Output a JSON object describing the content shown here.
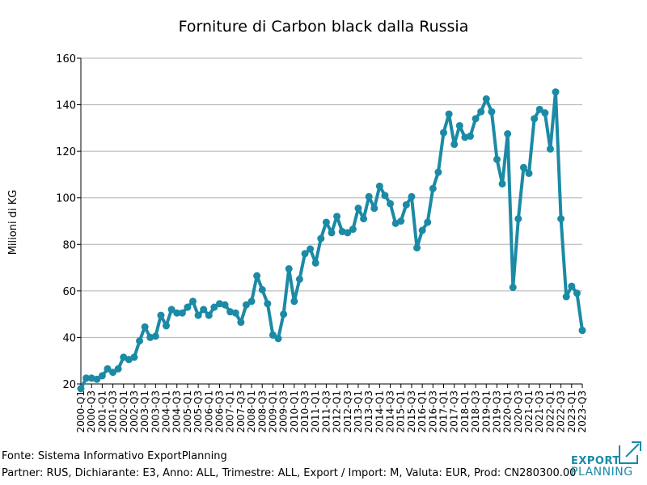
{
  "chart_data": {
    "type": "line",
    "title": "Forniture di Carbon black dalla Russia",
    "ylabel": "Milioni di KG",
    "xlabel": "",
    "ylim": [
      20,
      160
    ],
    "yticks": [
      20,
      40,
      60,
      80,
      100,
      120,
      140,
      160
    ],
    "grid": true,
    "color": "#1b8aa5",
    "tick_labels": [
      "2000-Q1",
      "2000-Q3",
      "2001-Q1",
      "2001-Q3",
      "2002-Q1",
      "2002-Q3",
      "2003-Q1",
      "2003-Q3",
      "2004-Q1",
      "2004-Q3",
      "2005-Q1",
      "2005-Q3",
      "2006-Q1",
      "2006-Q3",
      "2007-Q1",
      "2007-Q3",
      "2008-Q1",
      "2008-Q3",
      "2009-Q1",
      "2009-Q3",
      "2010-Q1",
      "2010-Q3",
      "2011-Q1",
      "2011-Q3",
      "2012-Q1",
      "2012-Q3",
      "2013-Q1",
      "2013-Q3",
      "2014-Q1",
      "2014-Q3",
      "2015-Q1",
      "2015-Q3",
      "2016-Q1",
      "2016-Q3",
      "2017-Q1",
      "2017-Q3",
      "2018-Q1",
      "2018-Q3",
      "2019-Q1",
      "2019-Q3",
      "2020-Q1",
      "2020-Q3",
      "2021-Q1",
      "2021-Q3",
      "2022-Q1",
      "2022-Q3",
      "2023-Q1",
      "2023-Q3"
    ],
    "series": [
      {
        "values": [
          18,
          22.5,
          22.5,
          22,
          23.5,
          26.5,
          25,
          26.5,
          31.5,
          30.5,
          31.5,
          38.5,
          44.5,
          40,
          40.5,
          49.5,
          45,
          52,
          50.5,
          50.5,
          53,
          55.5,
          49.5,
          52,
          49.5,
          53,
          54.5,
          54,
          51,
          50.5,
          46.5,
          54,
          55.5,
          66.5,
          60.5,
          54.5,
          41,
          39.5,
          50,
          69.5,
          55.5,
          65,
          76,
          78,
          72,
          82.5,
          89.5,
          85,
          92,
          85.5,
          85,
          86.5,
          95.5,
          91,
          100.5,
          95.5,
          105,
          101,
          97.5,
          89,
          90,
          97,
          100.5,
          78.5,
          86,
          89.5,
          104,
          111,
          128,
          136,
          123,
          131,
          126,
          126.5,
          134,
          137,
          142.5,
          137,
          116.5,
          106,
          127.5,
          61.5,
          91,
          113,
          110.5,
          134,
          138,
          136.5,
          121,
          145.5,
          91,
          57.5,
          62,
          59,
          43
        ]
      }
    ]
  },
  "footer": {
    "source": "Fonte: Sistema Informativo ExportPlanning",
    "partner": "Partner: RUS, Dichiarante: E3, Anno: ALL, Trimestre: ALL, Export / Import: M, Valuta: EUR, Prod: CN280300.00"
  },
  "logo": {
    "word1": "EXPORT",
    "word2": "PLANNING",
    "color": "#1a8aa6"
  }
}
